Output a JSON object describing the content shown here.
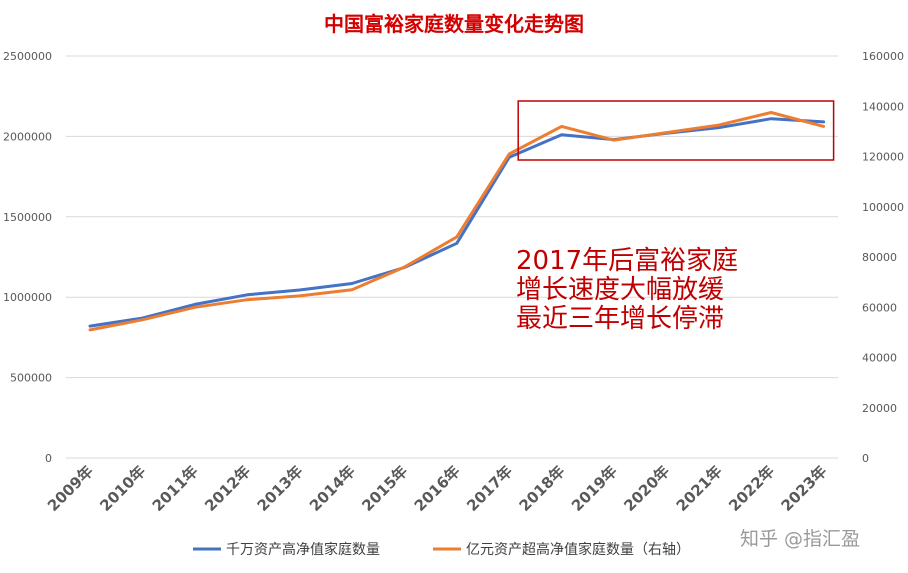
{
  "chart_data": {
    "type": "line",
    "title": "中国富裕家庭数量变化走势图",
    "categories": [
      "2009年",
      "2010年",
      "2011年",
      "2012年",
      "2013年",
      "2014年",
      "2015年",
      "2016年",
      "2017年",
      "2018年",
      "2019年",
      "2020年",
      "2021年",
      "2022年",
      "2023年"
    ],
    "y_left": {
      "ylim": [
        0,
        2500000
      ],
      "ticks": [
        "0",
        "500000",
        "1000000",
        "1500000",
        "2000000",
        "2500000"
      ]
    },
    "y_right": {
      "ylim": [
        0,
        160000
      ],
      "ticks": [
        "0",
        "20000",
        "40000",
        "60000",
        "80000",
        "100000",
        "120000",
        "140000",
        "160000"
      ]
    },
    "series": [
      {
        "name": "千万资产高净值家庭数量",
        "axis": "left",
        "color": "#4472C4",
        "values": [
          820000,
          870000,
          955000,
          1015000,
          1045000,
          1085000,
          1185000,
          1335000,
          1870000,
          2010000,
          1980000,
          2020000,
          2055000,
          2110000,
          2090000
        ]
      },
      {
        "name": "亿元资产超高净值家庭数量（右轴）",
        "axis": "right",
        "color": "#ED7D31",
        "values": [
          51000,
          55000,
          60000,
          63000,
          64500,
          67000,
          76000,
          88000,
          121000,
          132000,
          126500,
          129500,
          132500,
          137500,
          132000
        ]
      }
    ],
    "annotation": {
      "lines": [
        "2017年后富裕家庭",
        "增长速度大幅放缓",
        "最近三年增长停滞"
      ],
      "color": "#C00000"
    },
    "highlight_box": {
      "from_category": "2017年",
      "to_category": "2023年",
      "color": "#C00000"
    },
    "watermark": "知乎 @指汇盈",
    "grid": true,
    "legend_position": "bottom"
  }
}
